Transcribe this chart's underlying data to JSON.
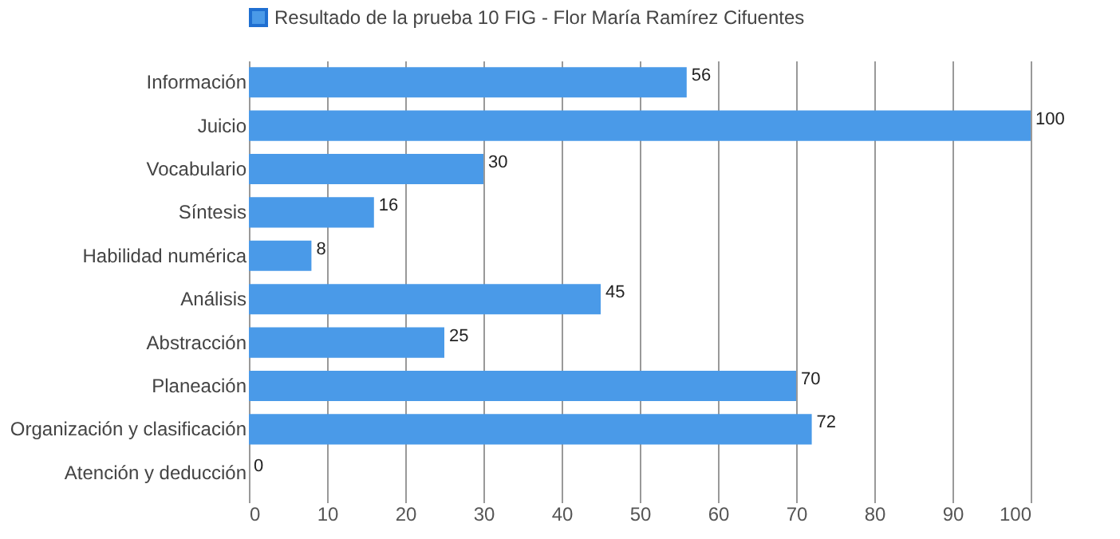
{
  "chart_data": {
    "type": "bar",
    "orientation": "horizontal",
    "categories": [
      "Información",
      "Juicio",
      "Vocabulario",
      "Síntesis",
      "Habilidad numérica",
      "Análisis",
      "Abstracción",
      "Planeación",
      "Organización y clasificación",
      "Atención y deducción"
    ],
    "series": [
      {
        "name": "Resultado de la prueba 10 FIG - Flor María Ramírez Cifuentes",
        "color": "#4a9ae8",
        "values": [
          56,
          100,
          30,
          16,
          8,
          45,
          25,
          70,
          72,
          0
        ]
      }
    ],
    "xlim": [
      0,
      100
    ],
    "xticks": [
      0,
      10,
      20,
      30,
      40,
      50,
      60,
      70,
      80,
      90,
      100
    ],
    "grid": "x",
    "legend": "top",
    "data_labels": true
  }
}
